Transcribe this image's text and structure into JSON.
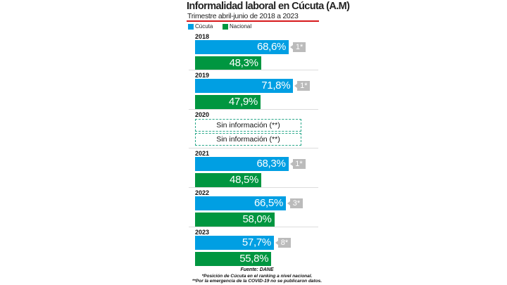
{
  "chart_data": {
    "type": "bar",
    "orientation": "horizontal",
    "title": "Informalidad laboral en Cúcuta (A.M)",
    "subtitle": "Trimestre abril-junio de 2018 a 2023",
    "legend": [
      "Cúcuta",
      "Nacional"
    ],
    "legend_position": "top-left",
    "colors": {
      "Cúcuta": "#009fe3",
      "Nacional": "#009640"
    },
    "categories": [
      "2018",
      "2019",
      "2020",
      "2021",
      "2022",
      "2023"
    ],
    "series": [
      {
        "name": "Cúcuta",
        "values": [
          68.6,
          71.8,
          null,
          68.3,
          66.5,
          57.7
        ],
        "labels": [
          "68,6%",
          "71,8%",
          "Sin información (**)",
          "68,3%",
          "66,5%",
          "57,7%"
        ]
      },
      {
        "name": "Nacional",
        "values": [
          48.3,
          47.9,
          null,
          48.5,
          58.0,
          55.8
        ],
        "labels": [
          "48,3%",
          "47,9%",
          "Sin información (**)",
          "48,5%",
          "58,0%",
          "55,8%"
        ]
      }
    ],
    "ranking": [
      "1*",
      "1*",
      null,
      "1*",
      "3*",
      "8*"
    ],
    "source": "Fuente: DANE",
    "notes": [
      "*Posición de Cúcuta en el ranking a nivel nacional.",
      "**Por la emergencia de la COVID-19 no se publicaron datos."
    ]
  }
}
